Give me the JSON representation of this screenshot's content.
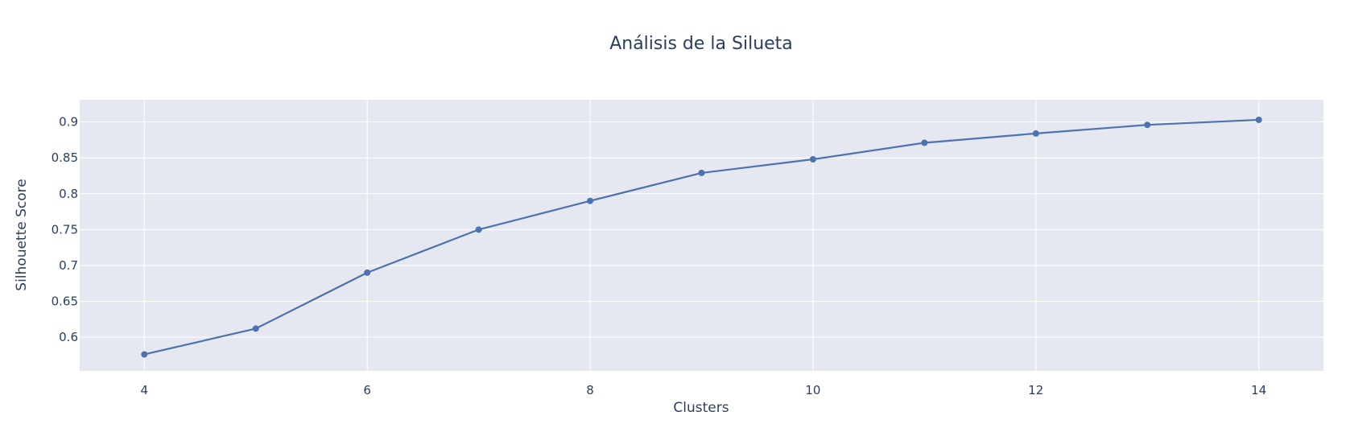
{
  "chart_data": {
    "type": "line",
    "title": "Análisis de la Silueta",
    "xlabel": "Clusters",
    "ylabel": "Silhouette Score",
    "x": [
      4,
      5,
      6,
      7,
      8,
      9,
      10,
      11,
      12,
      13,
      14
    ],
    "series": [
      {
        "values": [
          0.576,
          0.612,
          0.69,
          0.75,
          0.79,
          0.829,
          0.848,
          0.871,
          0.884,
          0.896,
          0.903
        ]
      }
    ],
    "xlim": [
      3.42,
      14.58
    ],
    "ylim": [
      0.553,
      0.931
    ],
    "x_ticks": [
      4,
      6,
      8,
      10,
      12,
      14
    ],
    "y_ticks": [
      0.6,
      0.65,
      0.7,
      0.75,
      0.8,
      0.85,
      0.9
    ],
    "x_tick_labels": [
      "4",
      "6",
      "8",
      "10",
      "12",
      "14"
    ],
    "y_tick_labels": [
      "0.6",
      "0.65",
      "0.7",
      "0.75",
      "0.8",
      "0.85",
      "0.9"
    ],
    "grid": true,
    "colors": {
      "line": "#4c72b0",
      "plot_background": "#e5e8f1",
      "grid": "#ffffff",
      "text": "#2a3f5f"
    }
  }
}
